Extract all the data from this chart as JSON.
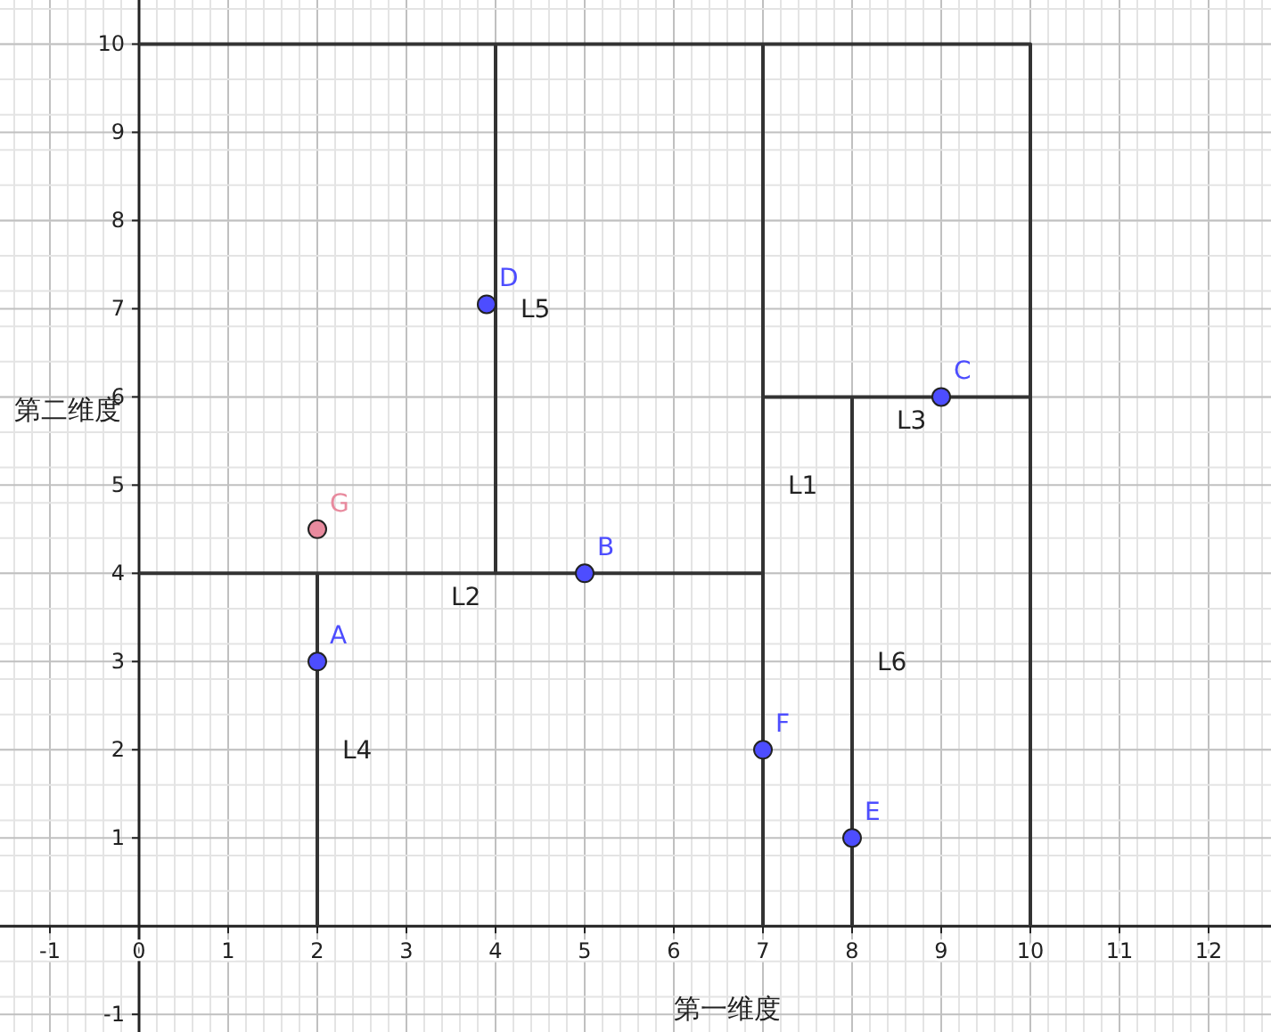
{
  "chart_data": {
    "type": "scatter",
    "xlabel": "第一维度",
    "ylabel": "第二维度",
    "xlim": [
      -1.56,
      12.7
    ],
    "ylim": [
      -1.2,
      10.5
    ],
    "xticks": [
      -1,
      0,
      1,
      2,
      3,
      4,
      5,
      6,
      7,
      8,
      9,
      10,
      11,
      12
    ],
    "yticks": [
      -1,
      1,
      2,
      3,
      4,
      5,
      6,
      7,
      8,
      9,
      10
    ],
    "grid": true,
    "line_style": "solid",
    "series": [
      {
        "type": "line",
        "color": "#333333",
        "x": [
          0,
          10,
          10
        ],
        "values": [
          10,
          10,
          0
        ]
      },
      {
        "type": "line",
        "name": "L1",
        "color": "#333333",
        "x": [
          7,
          7
        ],
        "values": [
          0,
          10
        ]
      },
      {
        "type": "line",
        "name": "L2",
        "color": "#333333",
        "x": [
          0,
          7
        ],
        "values": [
          4,
          4
        ]
      },
      {
        "type": "line",
        "name": "L3",
        "color": "#333333",
        "x": [
          7,
          10
        ],
        "values": [
          6,
          6
        ]
      },
      {
        "type": "line",
        "name": "L4",
        "color": "#333333",
        "x": [
          2,
          2
        ],
        "values": [
          0,
          4
        ]
      },
      {
        "type": "line",
        "name": "L5",
        "color": "#333333",
        "x": [
          4,
          4
        ],
        "values": [
          4,
          10
        ]
      },
      {
        "type": "line",
        "name": "L6",
        "color": "#333333",
        "x": [
          8,
          8
        ],
        "values": [
          0,
          6
        ]
      },
      {
        "type": "scatter",
        "name": "A",
        "color": "#4d4dff",
        "marker": "circle",
        "x": [
          2
        ],
        "values": [
          3
        ]
      },
      {
        "type": "scatter",
        "name": "B",
        "color": "#4d4dff",
        "marker": "circle",
        "x": [
          5
        ],
        "values": [
          4
        ]
      },
      {
        "type": "scatter",
        "name": "C",
        "color": "#4d4dff",
        "marker": "circle",
        "x": [
          9
        ],
        "values": [
          6
        ]
      },
      {
        "type": "scatter",
        "name": "D",
        "color": "#4d4dff",
        "marker": "circle",
        "x": [
          3.9
        ],
        "values": [
          7.05
        ]
      },
      {
        "type": "scatter",
        "name": "E",
        "color": "#4d4dff",
        "marker": "circle",
        "x": [
          8
        ],
        "values": [
          1
        ]
      },
      {
        "type": "scatter",
        "name": "F",
        "color": "#4d4dff",
        "marker": "circle",
        "x": [
          7
        ],
        "values": [
          2
        ]
      },
      {
        "type": "scatter",
        "name": "G",
        "color": "#e88a9e",
        "marker": "circle",
        "x": [
          2
        ],
        "values": [
          4.5
        ]
      }
    ]
  }
}
